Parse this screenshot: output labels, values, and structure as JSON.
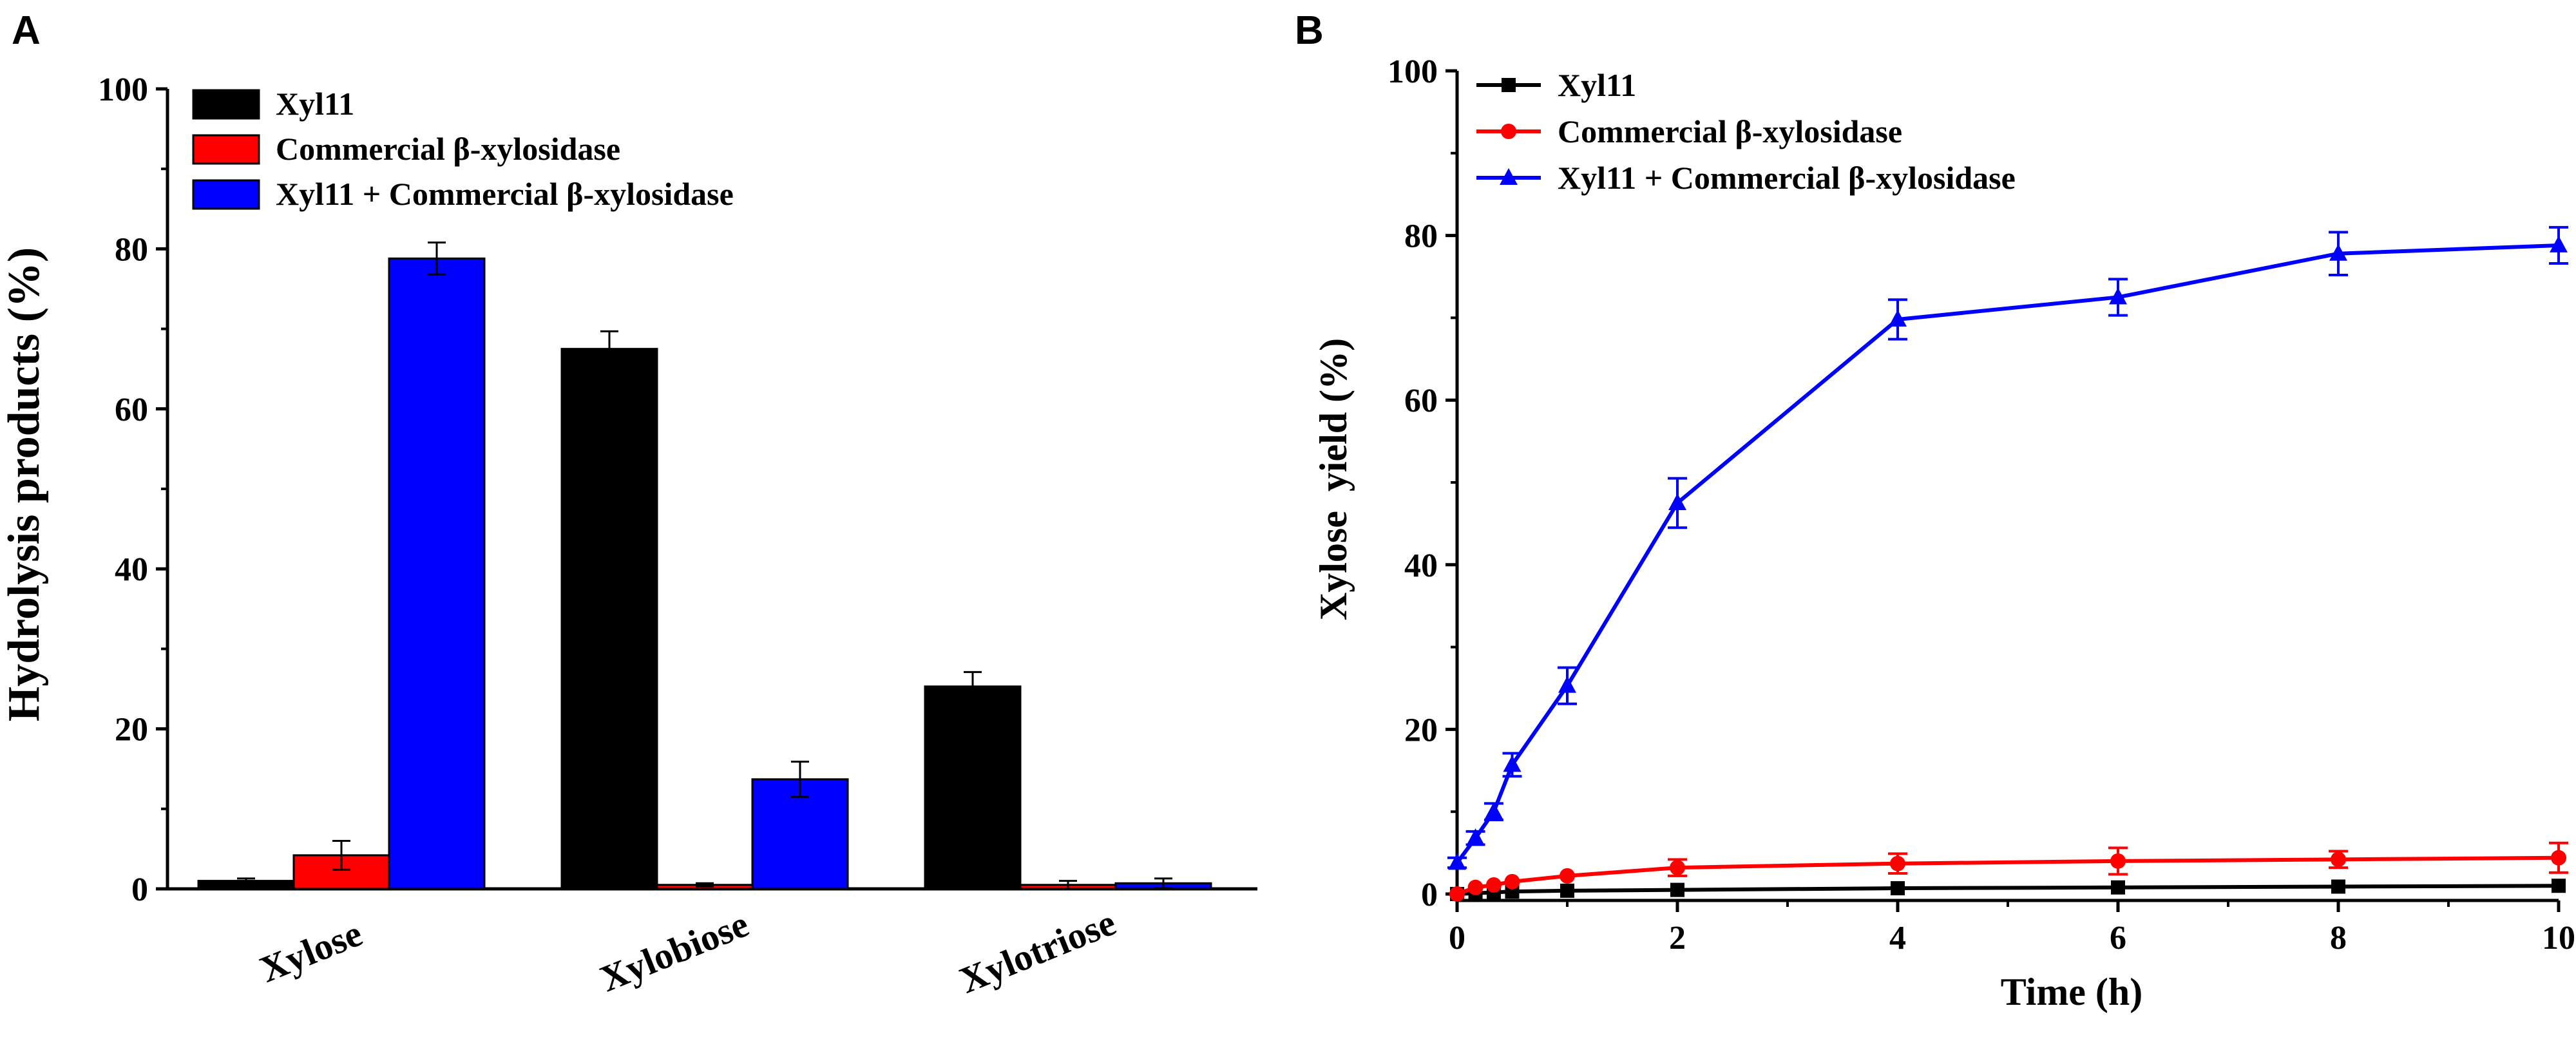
{
  "chart_data": [
    {
      "panel_label": "A",
      "type": "bar",
      "title": "",
      "xlabel": "",
      "ylabel": "Hydrolysis products (%)",
      "ylim": [
        0,
        100
      ],
      "yticks": [
        0,
        20,
        40,
        60,
        80,
        100
      ],
      "categories": [
        "Xylose",
        "Xylobiose",
        "Xylotriose"
      ],
      "series": [
        {
          "name": "Xyl11",
          "color": "#000000",
          "values": [
            1.0,
            67.5,
            25.3
          ],
          "errors": [
            0.3,
            2.2,
            1.8
          ]
        },
        {
          "name": "Commercial β-xylosidase",
          "color": "#ff0000",
          "values": [
            4.2,
            0.5,
            0.5
          ],
          "errors": [
            1.8,
            0.2,
            0.5
          ]
        },
        {
          "name": "Xyl11 + Commercial β-xylosidase",
          "color": "#0000ff",
          "values": [
            78.8,
            13.7,
            0.7
          ],
          "errors": [
            2.0,
            2.2,
            0.6
          ]
        }
      ],
      "legend_position": "top-left",
      "grid": false
    },
    {
      "panel_label": "B",
      "type": "line",
      "title": "",
      "xlabel": "Time (h)",
      "ylabel": "Xylose  yield (%)",
      "xlim": [
        0,
        10
      ],
      "ylim": [
        0,
        100
      ],
      "xticks": [
        0,
        2,
        4,
        6,
        8,
        10
      ],
      "yticks": [
        0,
        20,
        40,
        60,
        80,
        100
      ],
      "x": [
        0,
        0.167,
        0.333,
        0.5,
        1,
        2,
        4,
        6,
        8,
        10
      ],
      "series": [
        {
          "name": "Xyl11",
          "color": "#000000",
          "marker": "square",
          "values": [
            0,
            0.1,
            0.2,
            0.3,
            0.4,
            0.5,
            0.7,
            0.8,
            0.9,
            1.0
          ],
          "errors": [
            0,
            0,
            0,
            0,
            0,
            0,
            0,
            0,
            0,
            0
          ]
        },
        {
          "name": "Commercial β-xylosidase",
          "color": "#ff0000",
          "marker": "circle",
          "values": [
            0,
            0.8,
            1.1,
            1.5,
            2.2,
            3.2,
            3.7,
            4.0,
            4.2,
            4.4
          ],
          "errors": [
            0,
            0,
            0,
            0,
            0,
            1.0,
            1.2,
            1.6,
            1.0,
            1.8
          ]
        },
        {
          "name": "Xyl11 + Commercial β-xylosidase",
          "color": "#0000ff",
          "marker": "triangle",
          "values": [
            3.8,
            6.8,
            10.0,
            15.7,
            25.3,
            47.5,
            69.8,
            72.5,
            77.8,
            78.8
          ],
          "errors": [
            0.6,
            0.8,
            1.0,
            1.4,
            2.2,
            3.0,
            2.4,
            2.2,
            2.6,
            2.2
          ]
        }
      ],
      "legend_position": "top-left",
      "grid": false
    }
  ]
}
